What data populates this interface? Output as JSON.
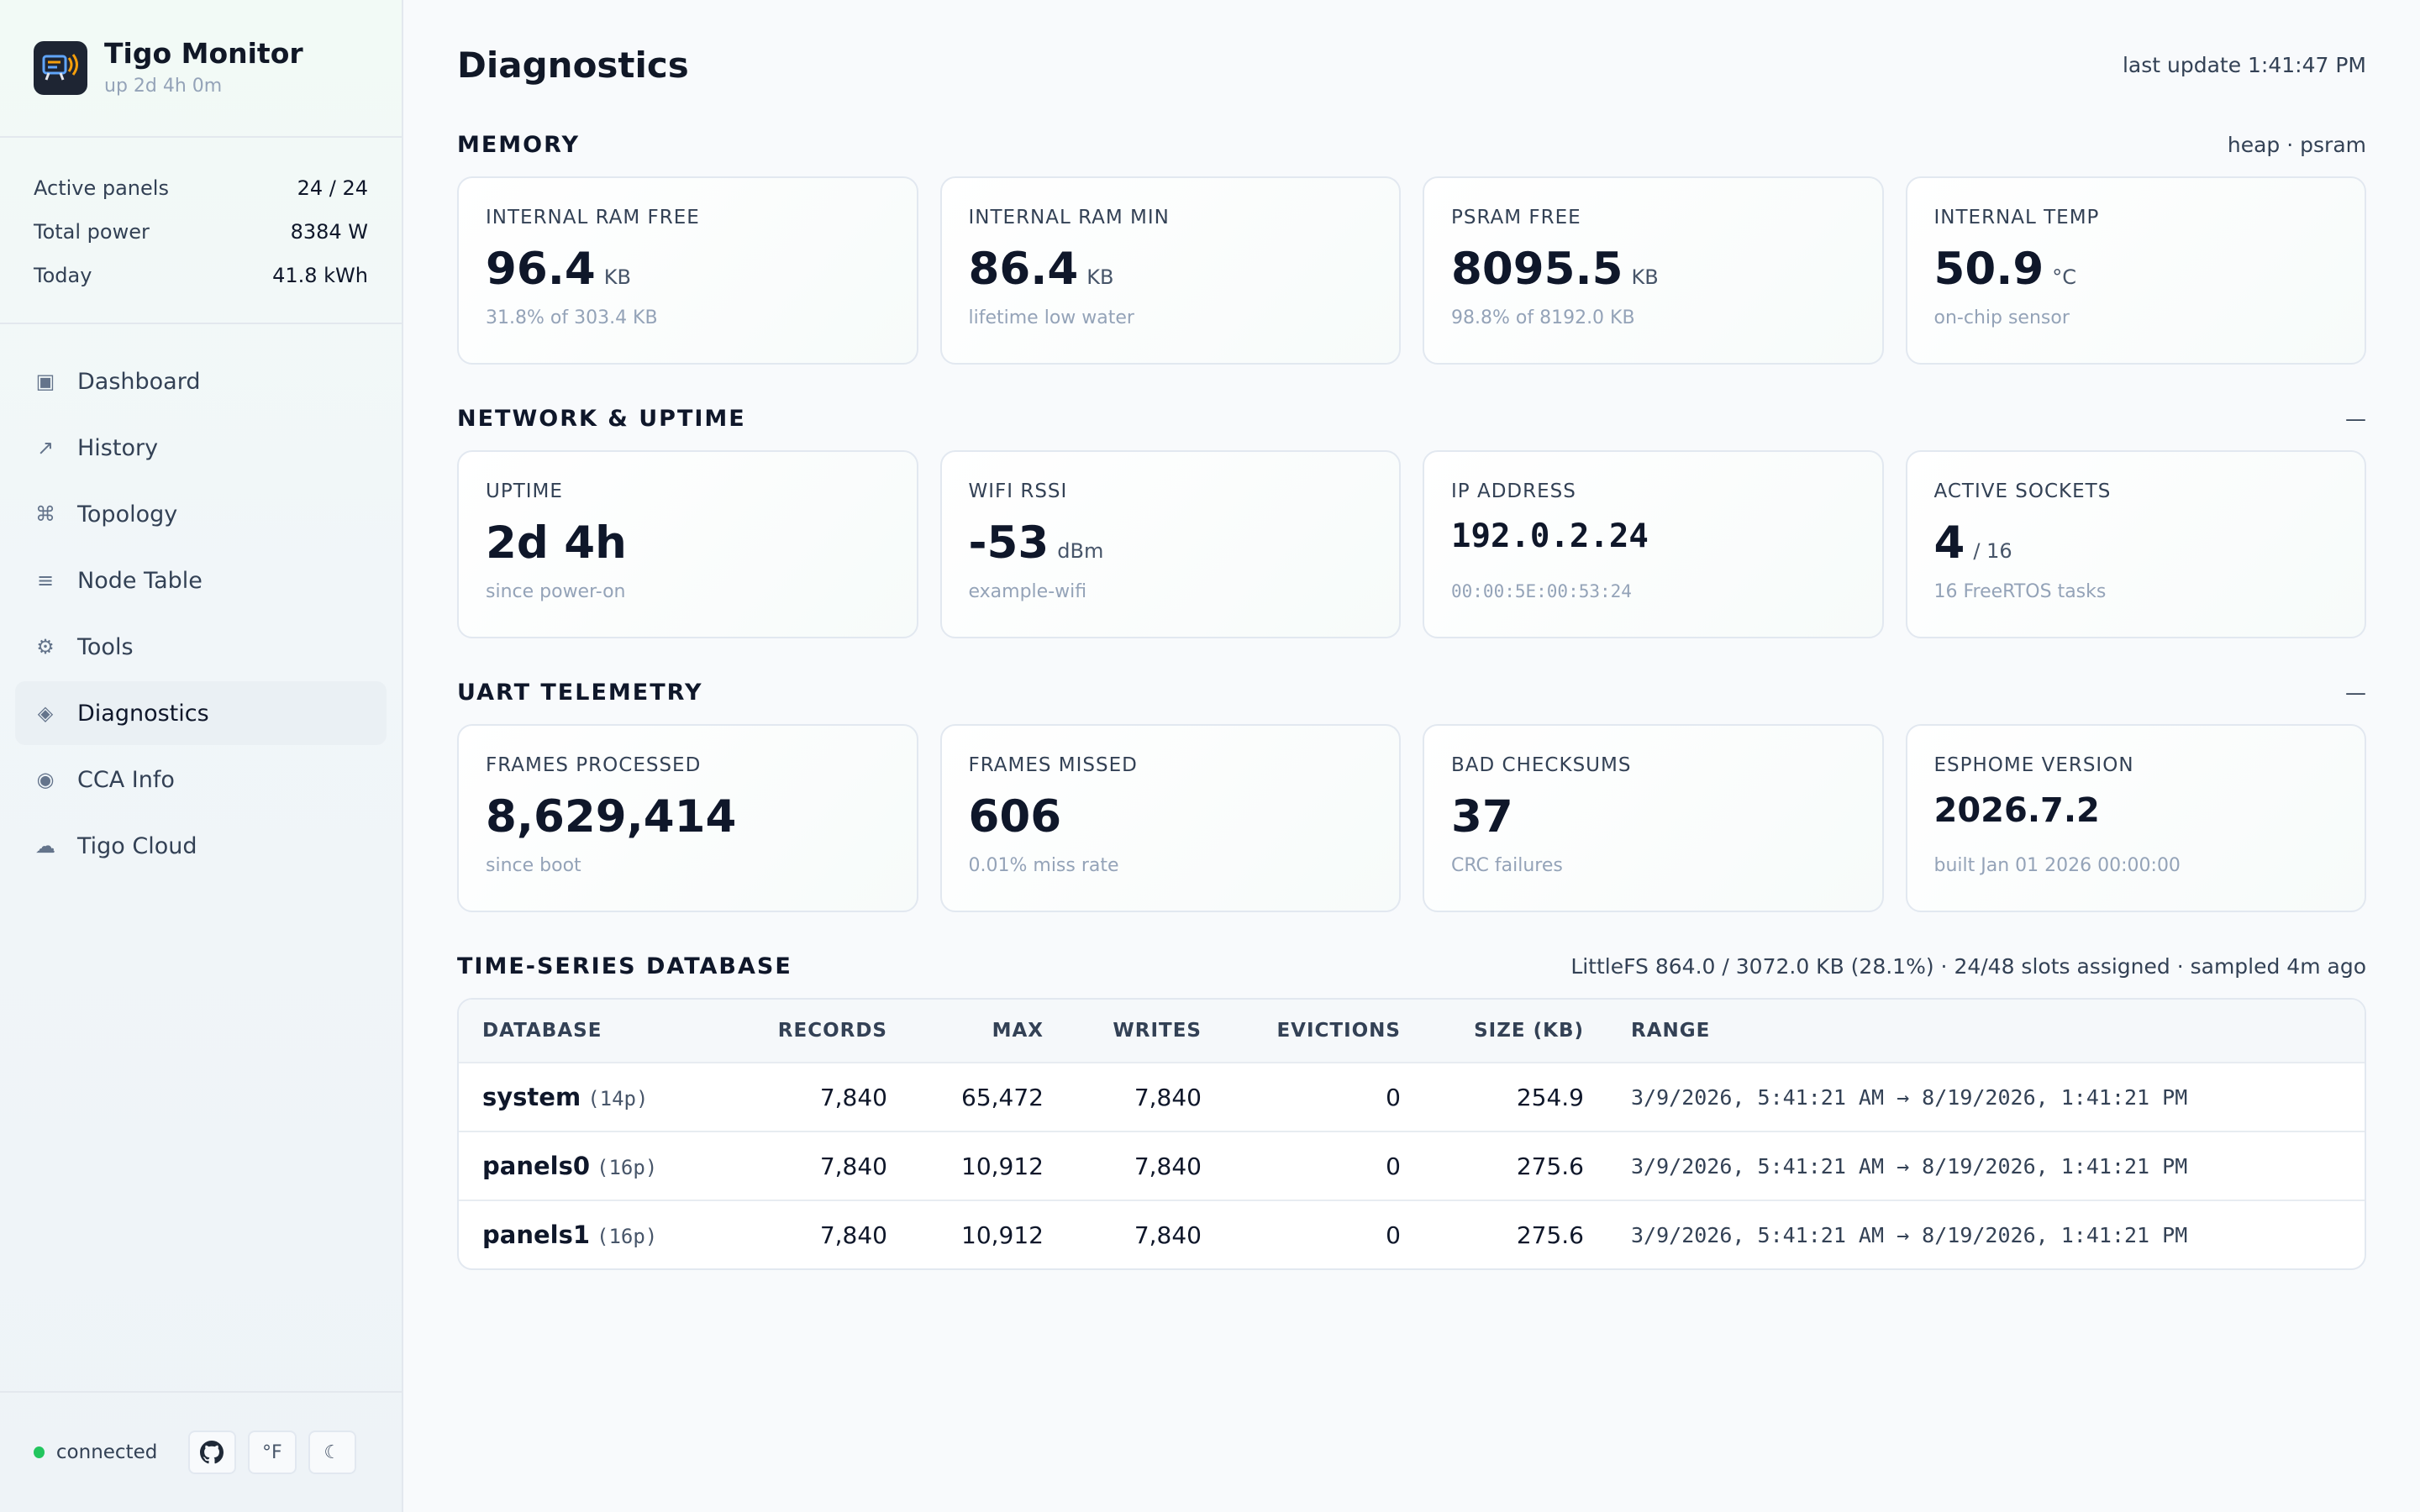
{
  "app": {
    "title": "Tigo Monitor",
    "uptime": "up 2d 4h 0m"
  },
  "summary": [
    {
      "label": "Active panels",
      "value": "24 / 24"
    },
    {
      "label": "Total power",
      "value": "8384 W"
    },
    {
      "label": "Today",
      "value": "41.8 kWh"
    }
  ],
  "nav": [
    {
      "label": "Dashboard",
      "icon": "▣",
      "icon_name": "dashboard-icon"
    },
    {
      "label": "History",
      "icon": "↗",
      "icon_name": "history-icon"
    },
    {
      "label": "Topology",
      "icon": "⌘",
      "icon_name": "topology-icon"
    },
    {
      "label": "Node Table",
      "icon": "≡",
      "icon_name": "node-table-icon"
    },
    {
      "label": "Tools",
      "icon": "⚙",
      "icon_name": "tools-icon"
    },
    {
      "label": "Diagnostics",
      "icon": "◈",
      "icon_name": "diagnostics-icon",
      "active": true
    },
    {
      "label": "CCA Info",
      "icon": "◉",
      "icon_name": "cca-info-icon"
    },
    {
      "label": "Tigo Cloud",
      "icon": "☁",
      "icon_name": "cloud-icon"
    }
  ],
  "footer": {
    "status": "connected",
    "temp_unit_label": "°F",
    "theme_icon": "☾",
    "status_color": "#22c55e"
  },
  "page": {
    "title": "Diagnostics",
    "last_update": "last update 1:41:47 PM"
  },
  "memory": {
    "title": "MEMORY",
    "meta": "heap · psram",
    "cards": [
      {
        "label": "INTERNAL RAM FREE",
        "value": "96.4",
        "unit": "KB",
        "sub": "31.8% of 303.4 KB"
      },
      {
        "label": "INTERNAL RAM MIN",
        "value": "86.4",
        "unit": "KB",
        "sub": "lifetime low water"
      },
      {
        "label": "PSRAM FREE",
        "value": "8095.5",
        "unit": "KB",
        "sub": "98.8% of 8192.0 KB"
      },
      {
        "label": "INTERNAL TEMP",
        "value": "50.9",
        "unit": "°C",
        "sub": "on-chip sensor"
      }
    ]
  },
  "network": {
    "title": "NETWORK & UPTIME",
    "meta": "—",
    "cards": [
      {
        "label": "UPTIME",
        "value": "2d 4h",
        "unit": "",
        "sub": "since power-on"
      },
      {
        "label": "WIFI RSSI",
        "value": "-53",
        "unit": "dBm",
        "sub": "example-wifi"
      },
      {
        "label": "IP ADDRESS",
        "value": "192.0.2.24",
        "unit": "",
        "sub": "00:00:5E:00:53:24"
      },
      {
        "label": "ACTIVE SOCKETS",
        "value": "4",
        "unit": "/ 16",
        "sub": "16 FreeRTOS tasks"
      }
    ]
  },
  "uart": {
    "title": "UART TELEMETRY",
    "meta": "—",
    "cards": [
      {
        "label": "FRAMES PROCESSED",
        "value": "8,629,414",
        "unit": "",
        "sub": "since boot"
      },
      {
        "label": "FRAMES MISSED",
        "value": "606",
        "unit": "",
        "sub": "0.01% miss rate"
      },
      {
        "label": "BAD CHECKSUMS",
        "value": "37",
        "unit": "",
        "sub": "CRC failures"
      },
      {
        "label": "ESPHOME VERSION",
        "value": "2026.7.2",
        "unit": "",
        "sub": "built Jan 01 2026 00:00:00"
      }
    ]
  },
  "tsdb": {
    "title": "TIME-SERIES DATABASE",
    "meta": "LittleFS 864.0 / 3072.0 KB (28.1%) · 24/48 slots assigned · sampled 4m ago",
    "columns": [
      "DATABASE",
      "RECORDS",
      "MAX",
      "WRITES",
      "EVICTIONS",
      "SIZE (KB)",
      "RANGE"
    ],
    "rows": [
      {
        "name": "system",
        "parts": "(14p)",
        "records": "7,840",
        "max": "65,472",
        "writes": "7,840",
        "evictions": "0",
        "size": "254.9",
        "range": "3/9/2026, 5:41:21 AM → 8/19/2026, 1:41:21 PM"
      },
      {
        "name": "panels0",
        "parts": "(16p)",
        "records": "7,840",
        "max": "10,912",
        "writes": "7,840",
        "evictions": "0",
        "size": "275.6",
        "range": "3/9/2026, 5:41:21 AM → 8/19/2026, 1:41:21 PM"
      },
      {
        "name": "panels1",
        "parts": "(16p)",
        "records": "7,840",
        "max": "10,912",
        "writes": "7,840",
        "evictions": "0",
        "size": "275.6",
        "range": "3/9/2026, 5:41:21 AM → 8/19/2026, 1:41:21 PM"
      }
    ]
  }
}
